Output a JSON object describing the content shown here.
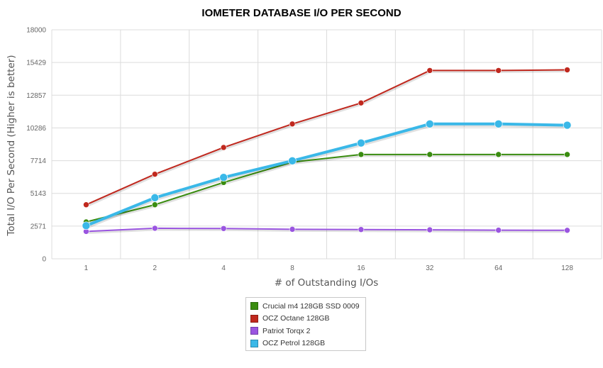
{
  "chart_data": {
    "type": "line",
    "title": "IOMETER DATABASE I/O PER SECOND",
    "xlabel": "# of Outstanding I/Os",
    "ylabel": "Total I/O Per Second (Higher is better)",
    "categories": [
      "1",
      "2",
      "4",
      "8",
      "16",
      "32",
      "64",
      "128"
    ],
    "yticks": [
      0,
      2571,
      5143,
      7714,
      10286,
      12857,
      15429,
      18000
    ],
    "ylim": [
      0,
      18000
    ],
    "grid": true,
    "legend_position": "bottom",
    "series": [
      {
        "name": "Crucial m4 128GB SSD 0009",
        "color": "#3a8c10",
        "values": [
          2900,
          4250,
          6000,
          7600,
          8200,
          8200,
          8200,
          8200
        ]
      },
      {
        "name": "OCZ Octane 128GB",
        "color": "#c0281e",
        "values": [
          4250,
          6650,
          8750,
          10600,
          12250,
          14800,
          14800,
          14850
        ]
      },
      {
        "name": "Patriot Torqx 2",
        "color": "#9a55e0",
        "values": [
          2150,
          2400,
          2380,
          2320,
          2300,
          2280,
          2250,
          2240
        ]
      },
      {
        "name": "OCZ Petrol 128GB",
        "color": "#3ab8e8",
        "values": [
          2600,
          4800,
          6400,
          7700,
          9100,
          10600,
          10600,
          10500
        ]
      }
    ]
  }
}
